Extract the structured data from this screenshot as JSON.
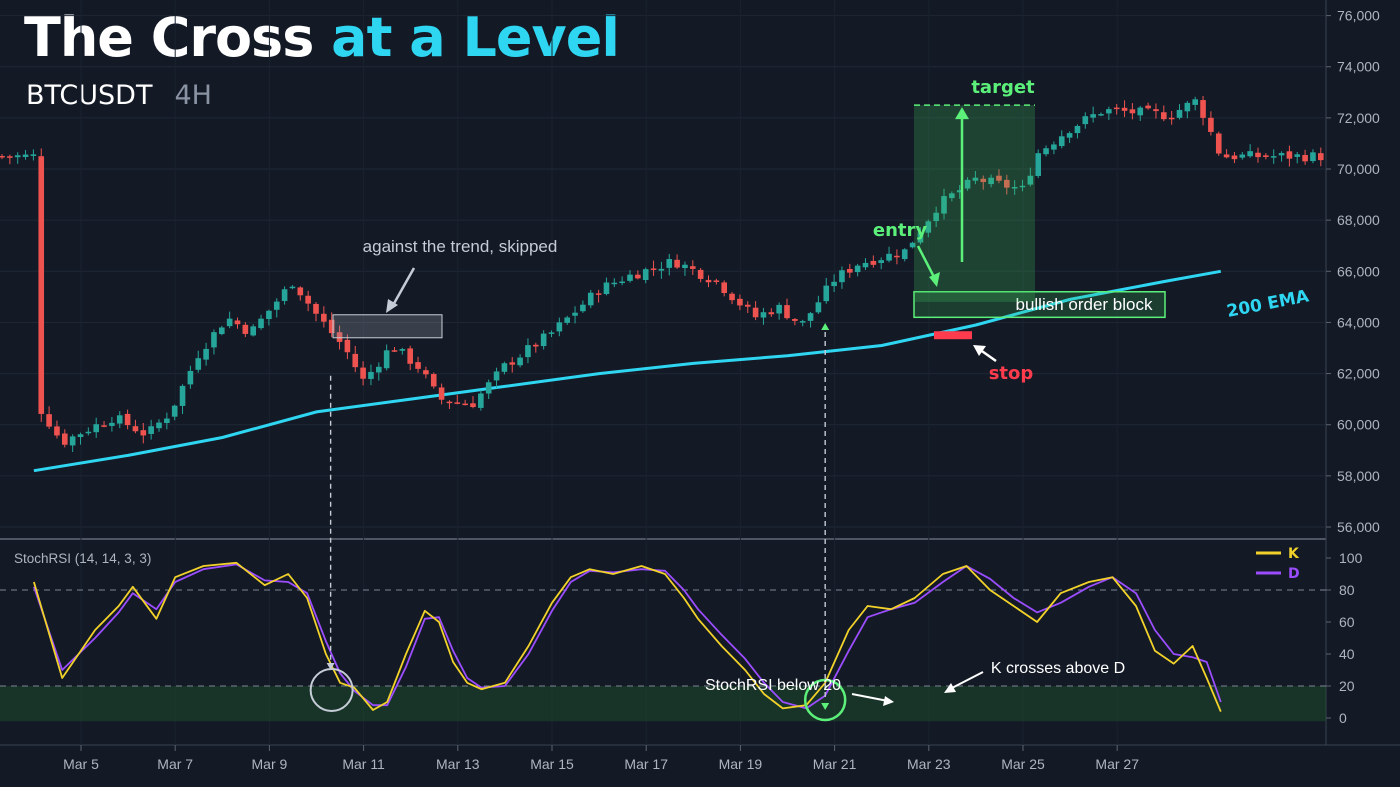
{
  "header": {
    "title_main": "The Cross",
    "title_accent": "at a Level",
    "symbol": "BTCUSDT",
    "timeframe": "4H"
  },
  "colors": {
    "background": "#131a26",
    "up": "#26a69a",
    "down": "#ef5350",
    "ema": "#2fd6f2",
    "k_line": "#f2d22a",
    "d_line": "#9b4dff",
    "target": "#5cf07a",
    "stop": "#ff3b4e"
  },
  "chart_data": [
    {
      "type": "candlestick",
      "title": "BTCUSDT 4H",
      "ylim": [
        55500,
        76500
      ],
      "y_ticks": [
        "56,000",
        "58,000",
        "60,000",
        "62,000",
        "64,000",
        "66,000",
        "68,000",
        "70,000",
        "72,000",
        "74,000",
        "76,000"
      ],
      "x_ticks": [
        "Mar 5",
        "Mar 7",
        "Mar 9",
        "Mar 11",
        "Mar 13",
        "Mar 15",
        "Mar 17",
        "Mar 19",
        "Mar 21",
        "Mar 23",
        "Mar 25",
        "Mar 27"
      ],
      "close_path": [
        [
          "Mar 4",
          61000
        ],
        [
          "Mar 4.6",
          59300
        ],
        [
          "Mar 5",
          59700
        ],
        [
          "Mar 5.7",
          60300
        ],
        [
          "Mar 6.4",
          59600
        ],
        [
          "Mar 6.9",
          60500
        ],
        [
          "Mar 7.5",
          62800
        ],
        [
          "Mar 8.1",
          64200
        ],
        [
          "Mar 8.6",
          63600
        ],
        [
          "Mar 9.5",
          65600
        ],
        [
          "Mar 10",
          64300
        ],
        [
          "Mar 10.6",
          63000
        ],
        [
          "Mar 11",
          61700
        ],
        [
          "Mar 11.6",
          63100
        ],
        [
          "Mar 12.2",
          62200
        ],
        [
          "Mar 12.6",
          61000
        ],
        [
          "Mar 13.3",
          60800
        ],
        [
          "Mar 14",
          62300
        ],
        [
          "Mar 15",
          63600
        ],
        [
          "Mar 16",
          65300
        ],
        [
          "Mar 16.6",
          65800
        ],
        [
          "Mar 17.6",
          66400
        ],
        [
          "Mar 18.5",
          65600
        ],
        [
          "Mar 19.3",
          64200
        ],
        [
          "Mar 19.8",
          64600
        ],
        [
          "Mar 20.3",
          63900
        ],
        [
          "Mar 21",
          65700
        ],
        [
          "Mar 21.5",
          66300
        ],
        [
          "Mar 22.5",
          66800
        ],
        [
          "Mar 23.2",
          68600
        ],
        [
          "Mar 24",
          69600
        ],
        [
          "Mar 25",
          69200
        ],
        [
          "Mar 25.3",
          70600
        ],
        [
          "Mar 26",
          71600
        ],
        [
          "Mar 26.7",
          72300
        ],
        [
          "Mar 27.5",
          72200
        ],
        [
          "Mar 28.1",
          72100
        ],
        [
          "Mar 28.7",
          72700
        ],
        [
          "Mar 29.2",
          70500
        ]
      ],
      "ema": {
        "label": "200 EMA",
        "points": [
          [
            "Mar 4",
            58200
          ],
          [
            "Mar 6",
            58800
          ],
          [
            "Mar 8",
            59500
          ],
          [
            "Mar 10",
            60500
          ],
          [
            "Mar 12",
            61000
          ],
          [
            "Mar 14",
            61500
          ],
          [
            "Mar 16",
            62000
          ],
          [
            "Mar 18",
            62400
          ],
          [
            "Mar 20",
            62700
          ],
          [
            "Mar 22",
            63100
          ],
          [
            "Mar 24",
            63900
          ],
          [
            "Mar 26",
            64900
          ],
          [
            "Mar 28",
            65600
          ],
          [
            "Mar 29.2",
            66000
          ]
        ]
      },
      "annotations": {
        "skipped_label": "against the trend, skipped",
        "order_block_label": "bullish order block",
        "order_block_range": [
          64200,
          65200
        ],
        "skip_box_range": [
          63400,
          64300
        ],
        "entry_label": "entry",
        "entry_price": 64800,
        "target_label": "target",
        "target_price": 72500,
        "stop_label": "stop",
        "stop_price": 63500
      }
    },
    {
      "type": "line",
      "title": "StochRSI (14, 14, 3, 3)",
      "ylim": [
        -5,
        105
      ],
      "y_ticks": [
        "0",
        "20",
        "40",
        "60",
        "80",
        "100"
      ],
      "levels": [
        20,
        80
      ],
      "series": [
        {
          "name": "K",
          "points": [
            [
              "Mar 4",
              85
            ],
            [
              "Mar 4.6",
              25
            ],
            [
              "Mar 5.3",
              55
            ],
            [
              "Mar 5.8",
              70
            ],
            [
              "Mar 6.1",
              82
            ],
            [
              "Mar 6.6",
              62
            ],
            [
              "Mar 7.0",
              88
            ],
            [
              "Mar 7.6",
              95
            ],
            [
              "Mar 8.3",
              97
            ],
            [
              "Mar 8.9",
              83
            ],
            [
              "Mar 9.4",
              90
            ],
            [
              "Mar 9.8",
              75
            ],
            [
              "Mar 10.2",
              40
            ],
            [
              "Mar 10.5",
              22
            ],
            [
              "Mar 10.8",
              19
            ],
            [
              "Mar 11.2",
              5
            ],
            [
              "Mar 11.5",
              10
            ],
            [
              "Mar 11.9",
              40
            ],
            [
              "Mar 12.3",
              67
            ],
            [
              "Mar 12.6",
              60
            ],
            [
              "Mar 12.9",
              35
            ],
            [
              "Mar 13.2",
              22
            ],
            [
              "Mar 13.5",
              18
            ],
            [
              "Mar 14.0",
              22
            ],
            [
              "Mar 14.5",
              45
            ],
            [
              "Mar 15.0",
              72
            ],
            [
              "Mar 15.4",
              88
            ],
            [
              "Mar 15.8",
              93
            ],
            [
              "Mar 16.3",
              90
            ],
            [
              "Mar 16.9",
              95
            ],
            [
              "Mar 17.4",
              90
            ],
            [
              "Mar 17.8",
              75
            ],
            [
              "Mar 18.1",
              62
            ],
            [
              "Mar 18.6",
              45
            ],
            [
              "Mar 19.1",
              30
            ],
            [
              "Mar 19.5",
              15
            ],
            [
              "Mar 19.9",
              6
            ],
            [
              "Mar 20.4",
              8
            ],
            [
              "Mar 20.8",
              22
            ],
            [
              "Mar 21.3",
              55
            ],
            [
              "Mar 21.7",
              70
            ],
            [
              "Mar 22.2",
              68
            ],
            [
              "Mar 22.7",
              75
            ],
            [
              "Mar 23.3",
              90
            ],
            [
              "Mar 23.8",
              95
            ],
            [
              "Mar 24.3",
              80
            ],
            [
              "Mar 24.8",
              70
            ],
            [
              "Mar 25.3",
              60
            ],
            [
              "Mar 25.8",
              78
            ],
            [
              "Mar 26.4",
              85
            ],
            [
              "Mar 26.9",
              88
            ],
            [
              "Mar 27.4",
              70
            ],
            [
              "Mar 27.8",
              42
            ],
            [
              "Mar 28.2",
              34
            ],
            [
              "Mar 28.6",
              45
            ],
            [
              "Mar 28.9",
              25
            ],
            [
              "Mar 29.2",
              4
            ]
          ]
        },
        {
          "name": "D",
          "points": [
            [
              "Mar 4",
              82
            ],
            [
              "Mar 4.6",
              30
            ],
            [
              "Mar 5.3",
              50
            ],
            [
              "Mar 5.8",
              66
            ],
            [
              "Mar 6.1",
              78
            ],
            [
              "Mar 6.6",
              68
            ],
            [
              "Mar 7.0",
              85
            ],
            [
              "Mar 7.6",
              93
            ],
            [
              "Mar 8.3",
              96
            ],
            [
              "Mar 8.9",
              86
            ],
            [
              "Mar 9.4",
              85
            ],
            [
              "Mar 9.8",
              78
            ],
            [
              "Mar 10.2",
              48
            ],
            [
              "Mar 10.5",
              28
            ],
            [
              "Mar 10.8",
              17
            ],
            [
              "Mar 11.2",
              8
            ],
            [
              "Mar 11.5",
              8
            ],
            [
              "Mar 11.9",
              32
            ],
            [
              "Mar 12.3",
              62
            ],
            [
              "Mar 12.6",
              63
            ],
            [
              "Mar 12.9",
              42
            ],
            [
              "Mar 13.2",
              25
            ],
            [
              "Mar 13.5",
              19
            ],
            [
              "Mar 14.0",
              20
            ],
            [
              "Mar 14.5",
              40
            ],
            [
              "Mar 15.0",
              67
            ],
            [
              "Mar 15.4",
              85
            ],
            [
              "Mar 15.8",
              92
            ],
            [
              "Mar 16.3",
              91
            ],
            [
              "Mar 16.9",
              93
            ],
            [
              "Mar 17.4",
              92
            ],
            [
              "Mar 17.8",
              80
            ],
            [
              "Mar 18.1",
              68
            ],
            [
              "Mar 18.6",
              52
            ],
            [
              "Mar 19.1",
              37
            ],
            [
              "Mar 19.5",
              22
            ],
            [
              "Mar 19.9",
              10
            ],
            [
              "Mar 20.4",
              6
            ],
            [
              "Mar 20.8",
              14
            ],
            [
              "Mar 21.3",
              42
            ],
            [
              "Mar 21.7",
              63
            ],
            [
              "Mar 22.2",
              68
            ],
            [
              "Mar 22.7",
              72
            ],
            [
              "Mar 23.3",
              85
            ],
            [
              "Mar 23.8",
              95
            ],
            [
              "Mar 24.3",
              87
            ],
            [
              "Mar 24.8",
              75
            ],
            [
              "Mar 25.3",
              66
            ],
            [
              "Mar 25.8",
              72
            ],
            [
              "Mar 26.4",
              82
            ],
            [
              "Mar 26.9",
              88
            ],
            [
              "Mar 27.4",
              78
            ],
            [
              "Mar 27.8",
              55
            ],
            [
              "Mar 28.2",
              40
            ],
            [
              "Mar 28.6",
              38
            ],
            [
              "Mar 28.9",
              35
            ],
            [
              "Mar 29.2",
              10
            ]
          ]
        }
      ],
      "annotations": {
        "below_label": "StochRSI below 20",
        "cross_label": "K crosses above D"
      }
    }
  ]
}
